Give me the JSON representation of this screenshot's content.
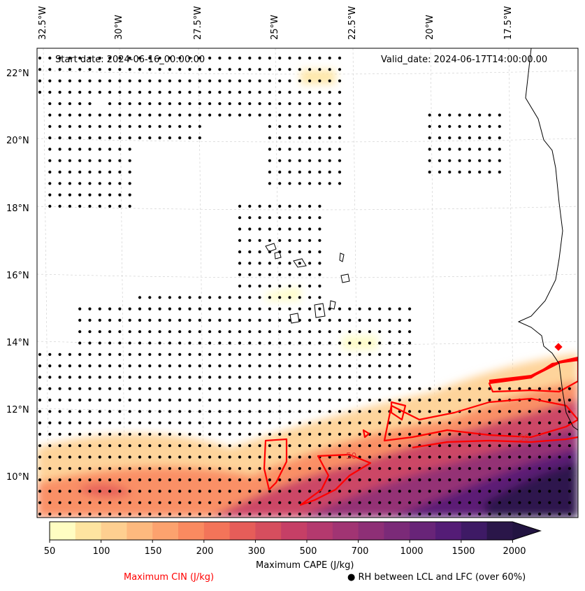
{
  "header": {
    "start_date": "Start date: 2024-06-16_00:00:00",
    "valid_date": "Valid_date: 2024-06-17T14:00:00.00"
  },
  "axes": {
    "longitude_labels": [
      "32.5°W",
      "30°W",
      "27.5°W",
      "25°W",
      "22.5°W",
      "20°W",
      "17.5°W"
    ],
    "latitude_labels": [
      "22°N",
      "20°N",
      "18°N",
      "16°N",
      "14°N",
      "12°N",
      "10°N"
    ]
  },
  "colorbar": {
    "label": "Maximum CAPE (J/kg)",
    "tick_labels": [
      "50",
      "100",
      "150",
      "200",
      "300",
      "500",
      "700",
      "1000",
      "1500",
      "2000"
    ],
    "colors": [
      "#fffdc2",
      "#fee4a0",
      "#fecf90",
      "#fdb97e",
      "#fca26e",
      "#fa8a60",
      "#f37459",
      "#e65d59",
      "#d64e5e",
      "#c63f66",
      "#b4396e",
      "#a13473",
      "#8e2f76",
      "#7b2a78",
      "#682478",
      "#541c76",
      "#3e1a65",
      "#2a1649",
      "#221441"
    ]
  },
  "legend": {
    "cin_label": "Maximum CIN (J/kg)",
    "cin_color": "#ff0000",
    "rh_label": "RH between LCL and LFC (over 60%)",
    "rh_marker": "●"
  },
  "contour_label": "50"
}
